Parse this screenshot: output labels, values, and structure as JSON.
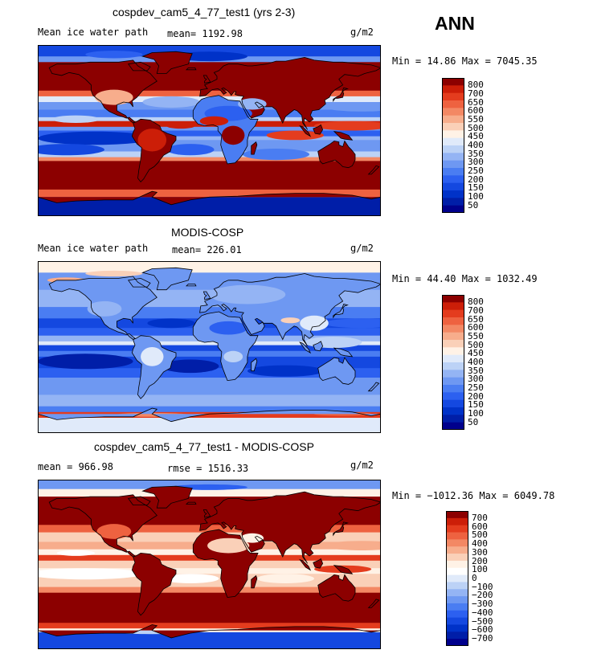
{
  "season": "ANN",
  "colors": {
    "land_outline": "#000000",
    "abs_scale": [
      "#00008c",
      "#001ea8",
      "#0032c8",
      "#1448e0",
      "#2c60f0",
      "#4a7df2",
      "#6e98f2",
      "#94b4f4",
      "#bcd2f6",
      "#e0eafa",
      "#fff2e6",
      "#fad0b8",
      "#f7ad8c",
      "#f38864",
      "#ee6240",
      "#e43c1e",
      "#cc1e08",
      "#8c0000"
    ],
    "diff_scale": [
      "#00008c",
      "#001ea8",
      "#0032c8",
      "#1448e0",
      "#2c60f0",
      "#4a7df2",
      "#6e98f2",
      "#94b4f4",
      "#bcd2f6",
      "#e0eafa",
      "#ffffff",
      "#fff2e6",
      "#fad0b8",
      "#f7ad8c",
      "#f38864",
      "#ee6240",
      "#e43c1e",
      "#cc1e08",
      "#8c0000"
    ]
  },
  "panels": [
    {
      "title": "cospdev_cam5_4_77_test1 (yrs 2-3)",
      "left_label": "Mean ice water path",
      "stat": "mean= 1192.98",
      "units": "g/m2",
      "minmax": "Min =  14.86 Max = 7045.35",
      "colorbar_labels": [
        "800",
        "700",
        "650",
        "600",
        "550",
        "500",
        "450",
        "400",
        "350",
        "300",
        "250",
        "200",
        "150",
        "100",
        "50"
      ]
    },
    {
      "title": "MODIS-COSP",
      "left_label": "Mean ice water path",
      "stat": "mean= 226.01",
      "units": "g/m2",
      "minmax": "Min =  44.40 Max = 1032.49",
      "colorbar_labels": [
        "800",
        "700",
        "650",
        "600",
        "550",
        "500",
        "450",
        "400",
        "350",
        "300",
        "250",
        "200",
        "150",
        "100",
        "50"
      ]
    },
    {
      "title": "cospdev_cam5_4_77_test1 - MODIS-COSP",
      "left_label": "mean = 966.98",
      "stat": "rmse = 1516.33",
      "units": "g/m2",
      "minmax": "Min = −1012.36 Max = 6049.78",
      "colorbar_labels": [
        "700",
        "600",
        "500",
        "400",
        "300",
        "200",
        "100",
        "0",
        "−100",
        "−200",
        "−300",
        "−400",
        "−500",
        "−600",
        "−700"
      ]
    }
  ],
  "chart_data": [
    {
      "type": "heatmap",
      "title": "cospdev_cam5_4_77_test1 (yrs 2-3)",
      "variable": "Mean ice water path",
      "units": "g/m2",
      "mean": 1192.98,
      "min": 14.86,
      "max": 7045.35,
      "contour_levels": [
        50,
        100,
        150,
        200,
        250,
        300,
        350,
        400,
        450,
        500,
        550,
        600,
        650,
        700,
        800
      ]
    },
    {
      "type": "heatmap",
      "title": "MODIS-COSP",
      "variable": "Mean ice water path",
      "units": "g/m2",
      "mean": 226.01,
      "min": 44.4,
      "max": 1032.49,
      "contour_levels": [
        50,
        100,
        150,
        200,
        250,
        300,
        350,
        400,
        450,
        500,
        550,
        600,
        650,
        700,
        800
      ]
    },
    {
      "type": "heatmap",
      "title": "cospdev_cam5_4_77_test1 - MODIS-COSP",
      "units": "g/m2",
      "mean": 966.98,
      "rmse": 1516.33,
      "min": -1012.36,
      "max": 6049.78,
      "contour_levels": [
        -700,
        -600,
        -500,
        -400,
        -300,
        -200,
        -100,
        0,
        100,
        200,
        300,
        400,
        500,
        600,
        700
      ]
    }
  ]
}
